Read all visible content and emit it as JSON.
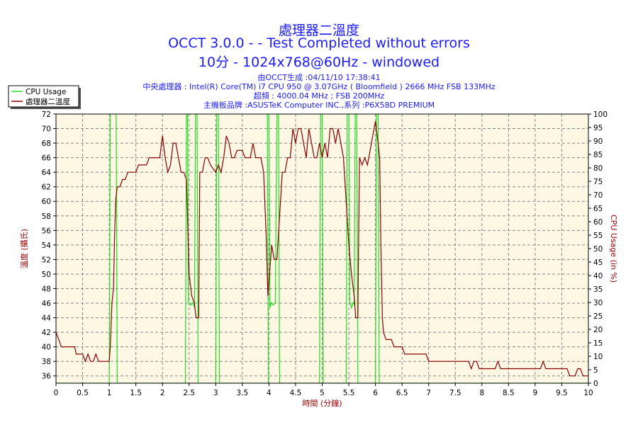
{
  "header": {
    "title_line1": "處理器二溫度",
    "title_line2": "OCCT 3.0.0 -  - Test Completed without errors",
    "title_line3": "10分 - 1024x768@60Hz - windowed",
    "info_line1": "由OCCT生成 :04/11/10 17:38:41",
    "info_line2": "中央處理器 : Intel(R) Core(TM) i7 CPU 950 @ 3.07GHz ( Bloomfield ) 2666 MHz FSB 133MHz",
    "info_line3": "超頻 : 4000.04 MHz ; FSB 200MHz",
    "info_line4": "主機板品牌 :ASUSTeK Computer INC.,系列 :P6X58D PREMIUM"
  },
  "colors": {
    "plot_background": "#fdf7e4",
    "temperature_line": "#8b0000",
    "cpu_usage_line": "#22dd22",
    "axis_title": "#990000",
    "title_text": "#1a1aff",
    "grid": "#888888"
  },
  "chart_data": {
    "type": "line",
    "xlabel": "時間 (分鐘)",
    "ylabel_left": "溫度 (攝氏)",
    "ylabel_right": "CPU Usage (in %)",
    "xlim": [
      0,
      10
    ],
    "ylim_left": [
      35,
      72
    ],
    "ylim_right": [
      0,
      100
    ],
    "x_ticks": [
      "0",
      "0.5",
      "1",
      "1.5",
      "2",
      "2.5",
      "3",
      "3.5",
      "4",
      "4.5",
      "5",
      "5.5",
      "6",
      "6.5",
      "7",
      "7.5",
      "8",
      "8.5",
      "9",
      "9.5",
      "10"
    ],
    "y_left_ticks": [
      "36",
      "38",
      "40",
      "42",
      "44",
      "46",
      "48",
      "50",
      "52",
      "54",
      "56",
      "58",
      "60",
      "62",
      "64",
      "66",
      "68",
      "70",
      "72"
    ],
    "y_right_ticks": [
      "0",
      "5",
      "10",
      "15",
      "20",
      "25",
      "30",
      "35",
      "40",
      "45",
      "50",
      "55",
      "60",
      "65",
      "70",
      "75",
      "80",
      "85",
      "90",
      "95",
      "100"
    ],
    "grid": true,
    "legend_position": "top-left",
    "series": [
      {
        "name": "CPU Usage",
        "axis": "right",
        "points": [
          [
            0,
            0
          ],
          [
            1,
            0
          ],
          [
            1.02,
            100
          ],
          [
            1.13,
            100
          ],
          [
            1.15,
            0
          ],
          [
            2.43,
            0
          ],
          [
            2.45,
            100
          ],
          [
            2.47,
            100
          ],
          [
            2.49,
            30
          ],
          [
            2.53,
            29
          ],
          [
            2.57,
            30
          ],
          [
            2.6,
            28
          ],
          [
            2.62,
            100
          ],
          [
            2.65,
            100
          ],
          [
            2.67,
            0
          ],
          [
            3.0,
            0
          ],
          [
            3.02,
            100
          ],
          [
            3.05,
            100
          ],
          [
            3.07,
            0
          ],
          [
            3.99,
            0
          ],
          [
            3.97,
            100
          ],
          [
            4.0,
            100
          ],
          [
            4.02,
            28
          ],
          [
            4.05,
            30
          ],
          [
            4.08,
            29
          ],
          [
            4.12,
            30
          ],
          [
            4.15,
            100
          ],
          [
            4.18,
            100
          ],
          [
            4.2,
            0
          ],
          [
            4.95,
            0
          ],
          [
            4.97,
            100
          ],
          [
            5.0,
            100
          ],
          [
            5.02,
            0
          ],
          [
            5.45,
            0
          ],
          [
            5.47,
            100
          ],
          [
            5.5,
            100
          ],
          [
            5.52,
            30
          ],
          [
            5.55,
            28
          ],
          [
            5.58,
            30
          ],
          [
            5.6,
            29
          ],
          [
            5.62,
            100
          ],
          [
            5.65,
            100
          ],
          [
            5.67,
            0
          ],
          [
            6.0,
            0
          ],
          [
            6.02,
            100
          ],
          [
            6.05,
            100
          ],
          [
            6.07,
            0
          ],
          [
            10,
            0
          ]
        ]
      },
      {
        "name": "處理器二溫度",
        "axis": "left",
        "points": [
          [
            0,
            42
          ],
          [
            0.05,
            41
          ],
          [
            0.1,
            40
          ],
          [
            0.35,
            40
          ],
          [
            0.38,
            39
          ],
          [
            0.5,
            39
          ],
          [
            0.55,
            38
          ],
          [
            0.6,
            39
          ],
          [
            0.65,
            38
          ],
          [
            0.7,
            38
          ],
          [
            0.75,
            39
          ],
          [
            0.8,
            38
          ],
          [
            1.0,
            38
          ],
          [
            1.02,
            40
          ],
          [
            1.05,
            46
          ],
          [
            1.08,
            48
          ],
          [
            1.1,
            55
          ],
          [
            1.12,
            60
          ],
          [
            1.15,
            62
          ],
          [
            1.2,
            62
          ],
          [
            1.25,
            63
          ],
          [
            1.3,
            63
          ],
          [
            1.35,
            64
          ],
          [
            1.5,
            64
          ],
          [
            1.55,
            65
          ],
          [
            1.7,
            65
          ],
          [
            1.75,
            66
          ],
          [
            1.95,
            66
          ],
          [
            2.0,
            69
          ],
          [
            2.05,
            66
          ],
          [
            2.1,
            64
          ],
          [
            2.15,
            65
          ],
          [
            2.2,
            68
          ],
          [
            2.25,
            68
          ],
          [
            2.3,
            66
          ],
          [
            2.35,
            64
          ],
          [
            2.4,
            64
          ],
          [
            2.45,
            63
          ],
          [
            2.5,
            50
          ],
          [
            2.55,
            47
          ],
          [
            2.6,
            46
          ],
          [
            2.63,
            44
          ],
          [
            2.68,
            44
          ],
          [
            2.7,
            64
          ],
          [
            2.75,
            64
          ],
          [
            2.8,
            66
          ],
          [
            2.85,
            66
          ],
          [
            2.9,
            65
          ],
          [
            3.0,
            64
          ],
          [
            3.05,
            65
          ],
          [
            3.1,
            64
          ],
          [
            3.15,
            66
          ],
          [
            3.2,
            69
          ],
          [
            3.25,
            68
          ],
          [
            3.3,
            66
          ],
          [
            3.35,
            66
          ],
          [
            3.4,
            67
          ],
          [
            3.5,
            67
          ],
          [
            3.55,
            66
          ],
          [
            3.65,
            66
          ],
          [
            3.7,
            68
          ],
          [
            3.75,
            66
          ],
          [
            3.85,
            66
          ],
          [
            3.9,
            64
          ],
          [
            3.95,
            55
          ],
          [
            3.98,
            47
          ],
          [
            4.02,
            51
          ],
          [
            4.05,
            54
          ],
          [
            4.1,
            52
          ],
          [
            4.15,
            52
          ],
          [
            4.2,
            58
          ],
          [
            4.25,
            64
          ],
          [
            4.3,
            64
          ],
          [
            4.35,
            66
          ],
          [
            4.4,
            66
          ],
          [
            4.45,
            70
          ],
          [
            4.5,
            68
          ],
          [
            4.55,
            70
          ],
          [
            4.6,
            70
          ],
          [
            4.65,
            68
          ],
          [
            4.7,
            66
          ],
          [
            4.75,
            70
          ],
          [
            4.8,
            68
          ],
          [
            4.85,
            66
          ],
          [
            4.9,
            66
          ],
          [
            4.95,
            68
          ],
          [
            5.0,
            66
          ],
          [
            5.05,
            68
          ],
          [
            5.1,
            66
          ],
          [
            5.15,
            70
          ],
          [
            5.2,
            70
          ],
          [
            5.25,
            68
          ],
          [
            5.3,
            70
          ],
          [
            5.35,
            68
          ],
          [
            5.4,
            66
          ],
          [
            5.45,
            60
          ],
          [
            5.5,
            54
          ],
          [
            5.55,
            50
          ],
          [
            5.6,
            47
          ],
          [
            5.63,
            44
          ],
          [
            5.67,
            44
          ],
          [
            5.7,
            66
          ],
          [
            5.75,
            65
          ],
          [
            5.8,
            66
          ],
          [
            5.85,
            65
          ],
          [
            5.9,
            67
          ],
          [
            5.95,
            69
          ],
          [
            6.0,
            71
          ],
          [
            6.05,
            68
          ],
          [
            6.08,
            66
          ],
          [
            6.1,
            55
          ],
          [
            6.13,
            44
          ],
          [
            6.15,
            42
          ],
          [
            6.2,
            41
          ],
          [
            6.3,
            41
          ],
          [
            6.35,
            40
          ],
          [
            6.5,
            40
          ],
          [
            6.55,
            39
          ],
          [
            6.95,
            39
          ],
          [
            7.0,
            38
          ],
          [
            7.75,
            38
          ],
          [
            7.8,
            37
          ],
          [
            7.85,
            38
          ],
          [
            7.9,
            38
          ],
          [
            7.95,
            37
          ],
          [
            8.25,
            37
          ],
          [
            8.3,
            38
          ],
          [
            8.35,
            37
          ],
          [
            9.1,
            37
          ],
          [
            9.15,
            38
          ],
          [
            9.2,
            37
          ],
          [
            9.6,
            37
          ],
          [
            9.65,
            36
          ],
          [
            9.75,
            36
          ],
          [
            9.8,
            37
          ],
          [
            9.85,
            37
          ],
          [
            9.9,
            36
          ],
          [
            10,
            36
          ]
        ]
      }
    ]
  }
}
